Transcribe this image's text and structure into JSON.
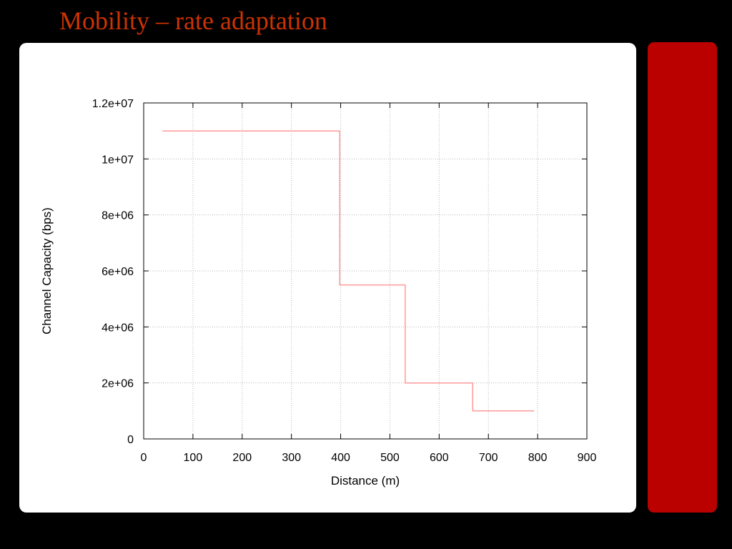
{
  "slide": {
    "title": "Mobility – rate adaptation",
    "title_color": "#cc3300",
    "background_color": "#000000",
    "panel_color": "#ffffff",
    "sidebar_color": "#bb0000"
  },
  "chart_data": {
    "type": "line",
    "line_style": "step",
    "xlabel": "Distance (m)",
    "ylabel": "Channel Capacity (bps)",
    "xlim": [
      0,
      900
    ],
    "ylim": [
      0,
      12000000
    ],
    "x_ticks": [
      0,
      100,
      200,
      300,
      400,
      500,
      600,
      700,
      800,
      900
    ],
    "y_ticks": [
      0,
      2000000,
      4000000,
      6000000,
      8000000,
      10000000,
      12000000
    ],
    "x_tick_labels": [
      "0",
      "100",
      "200",
      "300",
      "400",
      "500",
      "600",
      "700",
      "800",
      "900"
    ],
    "y_tick_labels": [
      "0",
      "2e+06",
      "4e+06",
      "6e+06",
      "8e+06",
      "1e+07",
      "1.2e+07"
    ],
    "grid": true,
    "series": [
      {
        "color": "#ff9a9a",
        "points": [
          [
            38,
            11000000
          ],
          [
            398,
            11000000
          ],
          [
            398,
            5500000
          ],
          [
            531,
            5500000
          ],
          [
            531,
            2000000
          ],
          [
            668,
            2000000
          ],
          [
            668,
            1000000
          ],
          [
            793,
            1000000
          ]
        ]
      }
    ]
  }
}
